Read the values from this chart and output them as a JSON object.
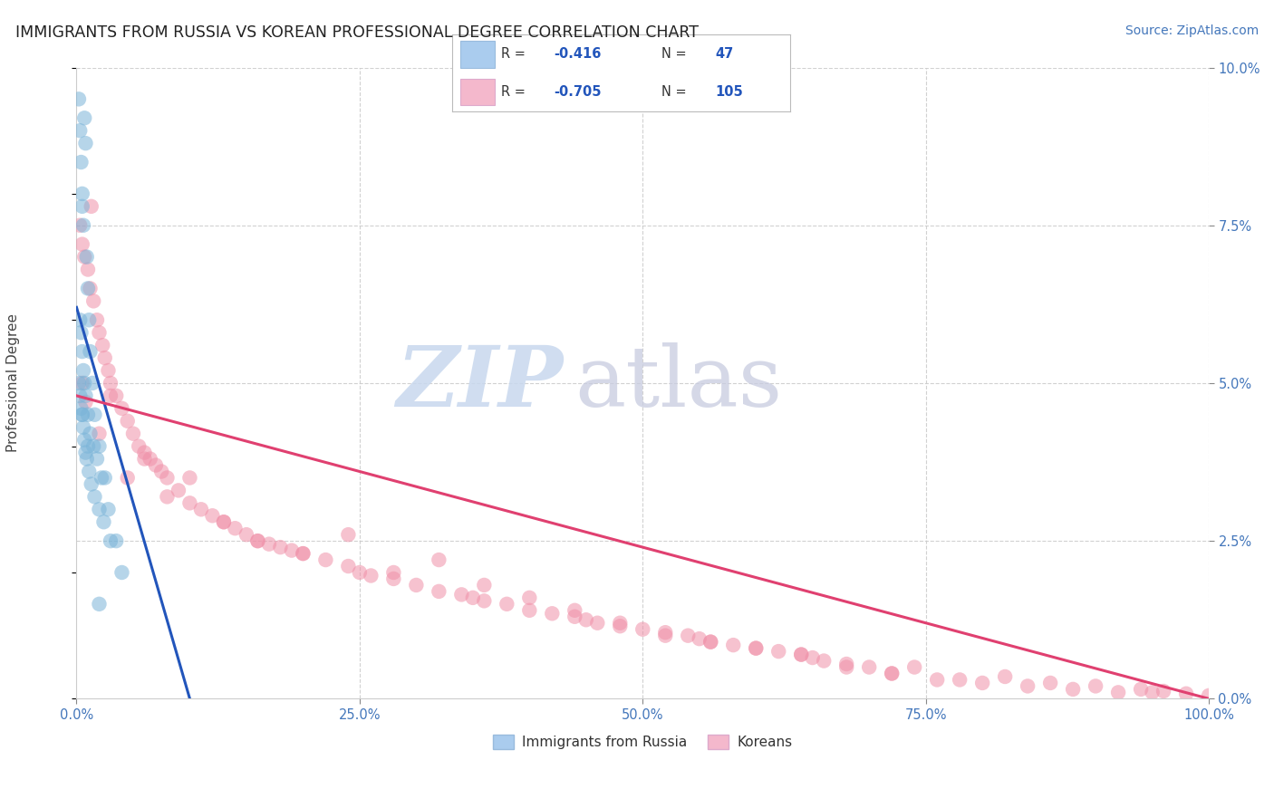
{
  "title": "IMMIGRANTS FROM RUSSIA VS KOREAN PROFESSIONAL DEGREE CORRELATION CHART",
  "source": "Source: ZipAtlas.com",
  "ylabel": "Professional Degree",
  "legend_entry1_label": "Immigrants from Russia",
  "legend_entry1_R": "-0.416",
  "legend_entry1_N": "47",
  "legend_entry2_label": "Koreans",
  "legend_entry2_R": "-0.705",
  "legend_entry2_N": "105",
  "watermark_zip": "ZIP",
  "watermark_atlas": "atlas",
  "blue_scatter_color": "#7ab4d8",
  "pink_scatter_color": "#f090a8",
  "blue_line_color": "#2255bb",
  "pink_line_color": "#e04070",
  "blue_legend_color": "#aaccee",
  "pink_legend_color": "#f4b8cc",
  "grid_color": "#cccccc",
  "background_color": "#ffffff",
  "xlim": [
    0,
    100
  ],
  "ylim": [
    0,
    10
  ],
  "title_fontsize": 13,
  "source_fontsize": 10,
  "russia_x": [
    0.2,
    0.3,
    0.4,
    0.5,
    0.5,
    0.6,
    0.7,
    0.8,
    0.9,
    1.0,
    1.1,
    1.2,
    1.4,
    1.6,
    2.0,
    2.5,
    3.0,
    0.3,
    0.4,
    0.5,
    0.6,
    0.7,
    0.8,
    1.0,
    1.2,
    1.5,
    1.8,
    2.2,
    2.8,
    3.5,
    4.0,
    0.2,
    0.3,
    0.4,
    0.5,
    0.6,
    0.7,
    0.8,
    0.9,
    1.1,
    1.3,
    1.6,
    2.0,
    2.4,
    0.5,
    1.0,
    2.0
  ],
  "russia_y": [
    9.5,
    9.0,
    8.5,
    8.0,
    7.8,
    7.5,
    9.2,
    8.8,
    7.0,
    6.5,
    6.0,
    5.5,
    5.0,
    4.5,
    4.0,
    3.5,
    2.5,
    6.0,
    5.8,
    5.5,
    5.2,
    5.0,
    4.8,
    4.5,
    4.2,
    4.0,
    3.8,
    3.5,
    3.0,
    2.5,
    2.0,
    5.0,
    4.8,
    4.6,
    4.5,
    4.3,
    4.1,
    3.9,
    3.8,
    3.6,
    3.4,
    3.2,
    3.0,
    2.8,
    4.5,
    4.0,
    1.5
  ],
  "korean_x": [
    0.3,
    0.5,
    0.7,
    1.0,
    1.2,
    1.5,
    1.8,
    2.0,
    2.3,
    2.5,
    2.8,
    3.0,
    3.5,
    4.0,
    4.5,
    5.0,
    5.5,
    6.0,
    6.5,
    7.0,
    7.5,
    8.0,
    9.0,
    10.0,
    11.0,
    12.0,
    13.0,
    14.0,
    15.0,
    16.0,
    17.0,
    18.0,
    19.0,
    20.0,
    22.0,
    24.0,
    25.0,
    26.0,
    28.0,
    30.0,
    32.0,
    34.0,
    35.0,
    36.0,
    38.0,
    40.0,
    42.0,
    44.0,
    45.0,
    46.0,
    48.0,
    50.0,
    52.0,
    54.0,
    55.0,
    56.0,
    58.0,
    60.0,
    62.0,
    64.0,
    65.0,
    66.0,
    68.0,
    70.0,
    0.5,
    0.8,
    1.3,
    2.0,
    3.0,
    4.5,
    6.0,
    8.0,
    10.0,
    13.0,
    16.0,
    20.0,
    24.0,
    28.0,
    32.0,
    36.0,
    40.0,
    44.0,
    48.0,
    52.0,
    56.0,
    60.0,
    64.0,
    68.0,
    72.0,
    76.0,
    80.0,
    84.0,
    88.0,
    92.0,
    95.0,
    98.0,
    100.0,
    72.0,
    74.0,
    78.0,
    82.0,
    86.0,
    90.0,
    94.0,
    96.0
  ],
  "korean_y": [
    7.5,
    7.2,
    7.0,
    6.8,
    6.5,
    6.3,
    6.0,
    5.8,
    5.6,
    5.4,
    5.2,
    5.0,
    4.8,
    4.6,
    4.4,
    4.2,
    4.0,
    3.9,
    3.8,
    3.7,
    3.6,
    3.5,
    3.3,
    3.1,
    3.0,
    2.9,
    2.8,
    2.7,
    2.6,
    2.5,
    2.45,
    2.4,
    2.35,
    2.3,
    2.2,
    2.1,
    2.0,
    1.95,
    1.9,
    1.8,
    1.7,
    1.65,
    1.6,
    1.55,
    1.5,
    1.4,
    1.35,
    1.3,
    1.25,
    1.2,
    1.15,
    1.1,
    1.05,
    1.0,
    0.95,
    0.9,
    0.85,
    0.8,
    0.75,
    0.7,
    0.65,
    0.6,
    0.55,
    0.5,
    5.0,
    4.7,
    7.8,
    4.2,
    4.8,
    3.5,
    3.8,
    3.2,
    3.5,
    2.8,
    2.5,
    2.3,
    2.6,
    2.0,
    2.2,
    1.8,
    1.6,
    1.4,
    1.2,
    1.0,
    0.9,
    0.8,
    0.7,
    0.5,
    0.4,
    0.3,
    0.25,
    0.2,
    0.15,
    0.1,
    0.1,
    0.08,
    0.05,
    0.4,
    0.5,
    0.3,
    0.35,
    0.25,
    0.2,
    0.15,
    0.12
  ]
}
